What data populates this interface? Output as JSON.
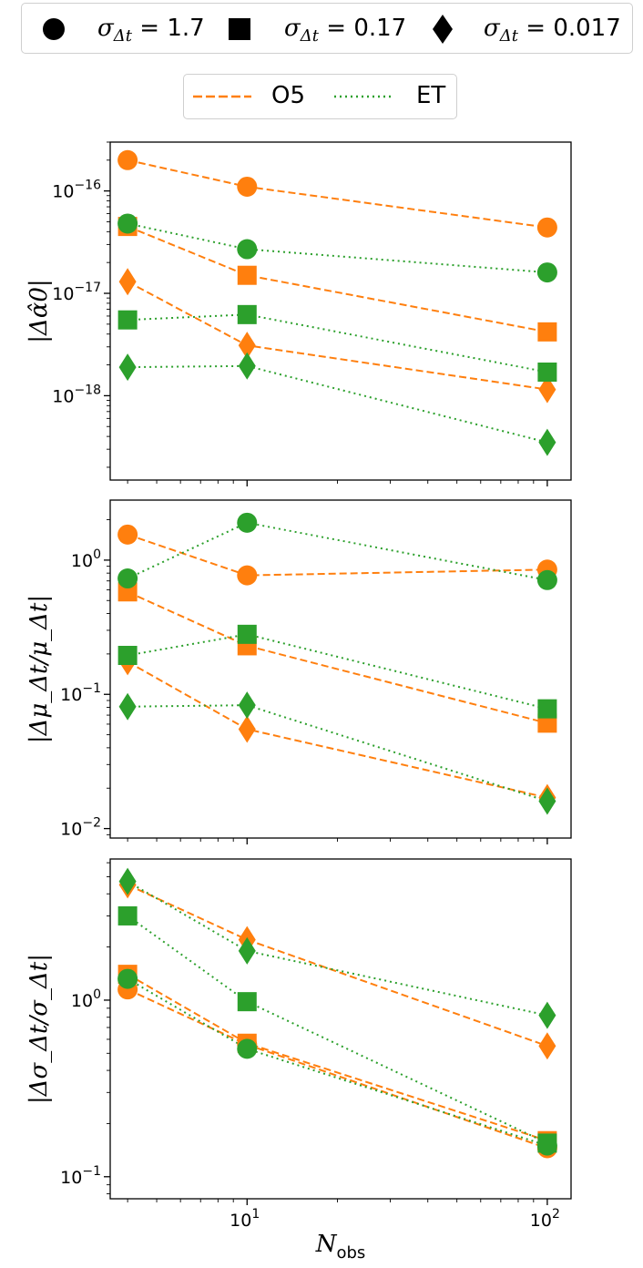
{
  "chart_data": {
    "type": "line",
    "xscale": "log",
    "yscale": "log",
    "xlim": [
      3.5,
      120
    ],
    "x": [
      4,
      10,
      100
    ],
    "xlabel": "N_obs",
    "xtick_labels": [
      "10^1",
      "10^2"
    ],
    "legend_markers": [
      {
        "marker": "circle",
        "label": "σ_Δt = 1.7"
      },
      {
        "marker": "square",
        "label": "σ_Δt = 0.17"
      },
      {
        "marker": "diamond",
        "label": "σ_Δt = 0.017"
      }
    ],
    "legend_lines": [
      {
        "name": "O5",
        "style": "dashed",
        "color": "#ff7f0e"
      },
      {
        "name": "ET",
        "style": "dotted",
        "color": "#2ca02c"
      }
    ],
    "panels": [
      {
        "ylabel": "|Δα̂0|",
        "ylim": [
          1.5e-19,
          3e-16
        ],
        "ytick_labels": [
          "10^-16",
          "10^-17",
          "10^-18"
        ],
        "series": [
          {
            "detector": "O5",
            "sigma": "1.7",
            "marker": "circle",
            "values": [
              2e-16,
              1.1e-16,
              4.4e-17
            ]
          },
          {
            "detector": "O5",
            "sigma": "0.17",
            "marker": "square",
            "values": [
              4.5e-17,
              1.5e-17,
              4.2e-18
            ]
          },
          {
            "detector": "O5",
            "sigma": "0.017",
            "marker": "diamond",
            "values": [
              1.3e-17,
              3.1e-18,
              1.15e-18
            ]
          },
          {
            "detector": "ET",
            "sigma": "1.7",
            "marker": "circle",
            "values": [
              4.8e-17,
              2.7e-17,
              1.6e-17
            ]
          },
          {
            "detector": "ET",
            "sigma": "0.17",
            "marker": "square",
            "values": [
              5.5e-18,
              6.2e-18,
              1.7e-18
            ]
          },
          {
            "detector": "ET",
            "sigma": "0.017",
            "marker": "diamond",
            "values": [
              1.9e-18,
              1.95e-18,
              3.5e-19
            ]
          }
        ]
      },
      {
        "ylabel": "|Δμ_Δt/μ_Δt|",
        "ylim": [
          0.0085,
          2.8
        ],
        "ytick_labels": [
          "10^0",
          "10^-1",
          "10^-2"
        ],
        "series": [
          {
            "detector": "O5",
            "sigma": "1.7",
            "marker": "circle",
            "values": [
              1.55,
              0.77,
              0.85
            ]
          },
          {
            "detector": "O5",
            "sigma": "0.17",
            "marker": "square",
            "values": [
              0.58,
              0.23,
              0.061
            ]
          },
          {
            "detector": "O5",
            "sigma": "0.017",
            "marker": "diamond",
            "values": [
              0.175,
              0.055,
              0.017
            ]
          },
          {
            "detector": "ET",
            "sigma": "1.7",
            "marker": "circle",
            "values": [
              0.73,
              1.9,
              0.71
            ]
          },
          {
            "detector": "ET",
            "sigma": "0.17",
            "marker": "square",
            "values": [
              0.195,
              0.28,
              0.078
            ]
          },
          {
            "detector": "ET",
            "sigma": "0.017",
            "marker": "diamond",
            "values": [
              0.081,
              0.083,
              0.016
            ]
          }
        ]
      },
      {
        "ylabel": "|Δσ_Δt/σ_Δt|",
        "ylim": [
          0.075,
          6.3
        ],
        "ytick_labels": [
          "10^0",
          "10^-1"
        ],
        "series": [
          {
            "detector": "O5",
            "sigma": "1.7",
            "marker": "circle",
            "values": [
              1.15,
              0.56,
              0.145
            ]
          },
          {
            "detector": "O5",
            "sigma": "0.17",
            "marker": "square",
            "values": [
              1.4,
              0.57,
              0.16
            ]
          },
          {
            "detector": "O5",
            "sigma": "0.017",
            "marker": "diamond",
            "values": [
              4.5,
              2.2,
              0.55
            ]
          },
          {
            "detector": "ET",
            "sigma": "1.7",
            "marker": "circle",
            "values": [
              1.32,
              0.53,
              0.15
            ]
          },
          {
            "detector": "ET",
            "sigma": "0.17",
            "marker": "square",
            "values": [
              3.0,
              0.98,
              0.155
            ]
          },
          {
            "detector": "ET",
            "sigma": "0.017",
            "marker": "diamond",
            "values": [
              4.7,
              1.9,
              0.82
            ]
          }
        ]
      }
    ]
  }
}
